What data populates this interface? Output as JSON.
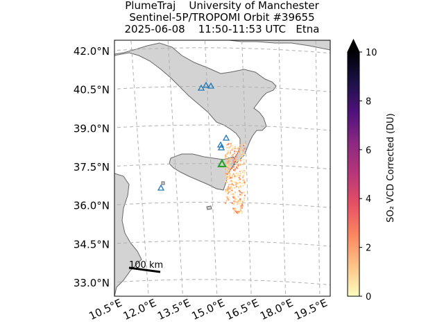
{
  "title": {
    "line1": "PlumeTraj    University of Manchester",
    "line2": "Sentinel-5P/TROPOMI Orbit #39655",
    "line3": "2025-06-08    11:50-11:53 UTC   Etna"
  },
  "map": {
    "lat_ticks": [
      {
        "value": 42.0,
        "label": "42.0°N"
      },
      {
        "value": 40.5,
        "label": "40.5°N"
      },
      {
        "value": 39.0,
        "label": "39.0°N"
      },
      {
        "value": 37.5,
        "label": "37.5°N"
      },
      {
        "value": 36.0,
        "label": "36.0°N"
      },
      {
        "value": 34.5,
        "label": "34.5°N"
      },
      {
        "value": 33.0,
        "label": "33.0°N"
      }
    ],
    "lon_ticks": [
      {
        "value": 10.5,
        "label": "10.5°E"
      },
      {
        "value": 12.0,
        "label": "12.0°E"
      },
      {
        "value": 13.5,
        "label": "13.5°E"
      },
      {
        "value": 15.0,
        "label": "15.0°E"
      },
      {
        "value": 16.5,
        "label": "16.5°E"
      },
      {
        "value": 18.0,
        "label": "18.0°E"
      },
      {
        "value": 19.5,
        "label": "19.5°E"
      }
    ],
    "scale_bar_label": "100 km",
    "gridlines": true,
    "land_color": "#d3d3d3",
    "sea_color": "#ffffff",
    "volcano_markers": {
      "shape": "triangle",
      "other_color": "#1f77b4",
      "target_color": "#2ca02c",
      "target": {
        "name": "Etna",
        "lon": 15.0,
        "lat": 37.75
      }
    }
  },
  "colorbar": {
    "label": "SO₂ VCD Corrected (DU)",
    "min": 0,
    "max": 10,
    "ticks": [
      "0",
      "2",
      "4",
      "6",
      "8",
      "10"
    ],
    "extend": "max",
    "colormap": "magma_r",
    "stops": [
      "#fcfdbf",
      "#fec287",
      "#fb8761",
      "#e65164",
      "#b73779",
      "#8c2981",
      "#51127c",
      "#1d1147",
      "#000004"
    ]
  }
}
